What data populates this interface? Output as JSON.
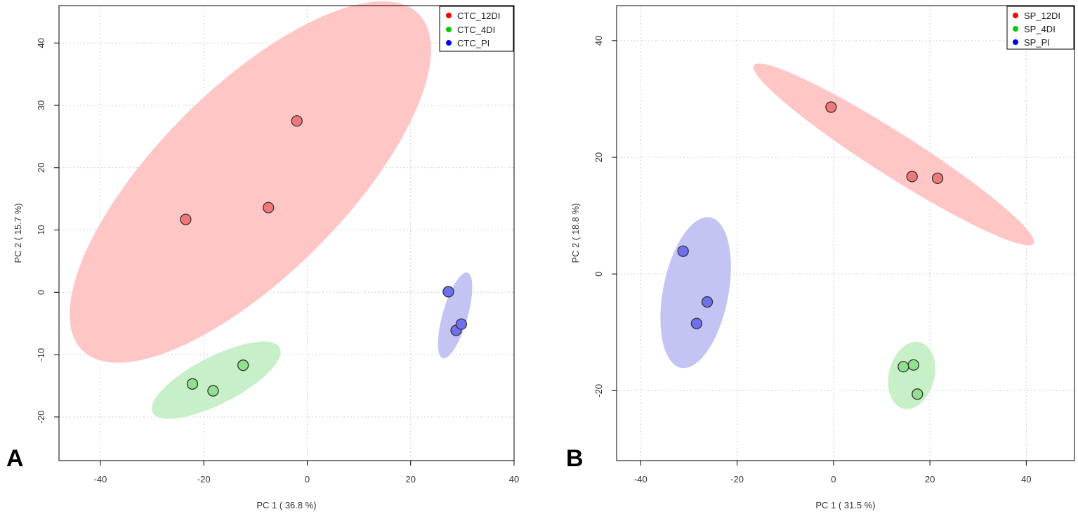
{
  "chart_data": [
    {
      "type": "scatter",
      "panel_label": "A",
      "xlabel": "PC 1 ( 36.8 %)",
      "ylabel": "PC 2 ( 15.7 %)",
      "xlim": [
        -48,
        40
      ],
      "ylim": [
        -27,
        46
      ],
      "xticks": [
        -40,
        -20,
        0,
        20,
        40
      ],
      "yticks": [
        -20,
        -10,
        0,
        10,
        20,
        30,
        40
      ],
      "grid": true,
      "legend_position": "top-right",
      "series": [
        {
          "name": "CTC_12DI",
          "color": "#ff0000",
          "fill": "#f07878",
          "ellipse_fill": "#ffc6c6",
          "points": [
            {
              "x": -23.5,
              "y": 11.7
            },
            {
              "x": -7.5,
              "y": 13.6
            },
            {
              "x": -2,
              "y": 27.5
            }
          ],
          "ellipse": {
            "cx": -11,
            "cy": 17.7,
            "rx": 46,
            "ry": 15,
            "angle": 45
          }
        },
        {
          "name": "CTC_4DI",
          "color": "#00cc00",
          "fill": "#8fe08f",
          "ellipse_fill": "#c8f0c8",
          "points": [
            {
              "x": -22.2,
              "y": -14.7
            },
            {
              "x": -18.2,
              "y": -15.8
            },
            {
              "x": -12.4,
              "y": -11.7
            }
          ],
          "ellipse": {
            "cx": -17.6,
            "cy": -14.1,
            "rx": 13.8,
            "ry": 3.8,
            "angle": 27
          }
        },
        {
          "name": "CTC_PI",
          "color": "#0000ff",
          "fill": "#7070ee",
          "ellipse_fill": "#c4c4f4",
          "points": [
            {
              "x": 27.3,
              "y": 0.1
            },
            {
              "x": 28.8,
              "y": -6.1
            },
            {
              "x": 29.8,
              "y": -5.1
            }
          ],
          "ellipse": {
            "cx": 28.6,
            "cy": -3.7,
            "rx": 8.6,
            "ry": 2,
            "angle": 74
          }
        }
      ]
    },
    {
      "type": "scatter",
      "panel_label": "B",
      "xlabel": "PC 1 ( 31.5 %)",
      "ylabel": "PC 2 ( 18.8 %)",
      "xlim": [
        -45,
        50
      ],
      "ylim": [
        -32,
        46
      ],
      "xticks": [
        -40,
        -20,
        0,
        20,
        40
      ],
      "yticks": [
        -20,
        0,
        20,
        40
      ],
      "grid": true,
      "legend_position": "top-right",
      "series": [
        {
          "name": "SP_12DI",
          "color": "#ff0000",
          "fill": "#f07878",
          "ellipse_fill": "#ffc6c6",
          "points": [
            {
              "x": -0.5,
              "y": 28.6
            },
            {
              "x": 16.3,
              "y": 16.7
            },
            {
              "x": 21.6,
              "y": 16.4
            }
          ],
          "ellipse": {
            "cx": 12.5,
            "cy": 20.5,
            "rx": 34.4,
            "ry": 3.7,
            "angle": -32.5
          }
        },
        {
          "name": "SP_4DI",
          "color": "#00cc00",
          "fill": "#8fe08f",
          "ellipse_fill": "#c8f0c8",
          "points": [
            {
              "x": 14.5,
              "y": -15.9
            },
            {
              "x": 16.6,
              "y": -15.6
            },
            {
              "x": 17.4,
              "y": -20.6
            }
          ],
          "ellipse": {
            "cx": 16.2,
            "cy": -17.4,
            "rx": 7.1,
            "ry": 3.9,
            "angle": 76
          }
        },
        {
          "name": "SP_PI",
          "color": "#0000ff",
          "fill": "#7070ee",
          "ellipse_fill": "#c4c4f4",
          "points": [
            {
              "x": -31.2,
              "y": 3.9
            },
            {
              "x": -28.4,
              "y": -8.5
            },
            {
              "x": -26.2,
              "y": -4.8
            }
          ],
          "ellipse": {
            "cx": -28.6,
            "cy": -3.2,
            "rx": 15.9,
            "ry": 5.6,
            "angle": 79
          }
        }
      ]
    }
  ]
}
